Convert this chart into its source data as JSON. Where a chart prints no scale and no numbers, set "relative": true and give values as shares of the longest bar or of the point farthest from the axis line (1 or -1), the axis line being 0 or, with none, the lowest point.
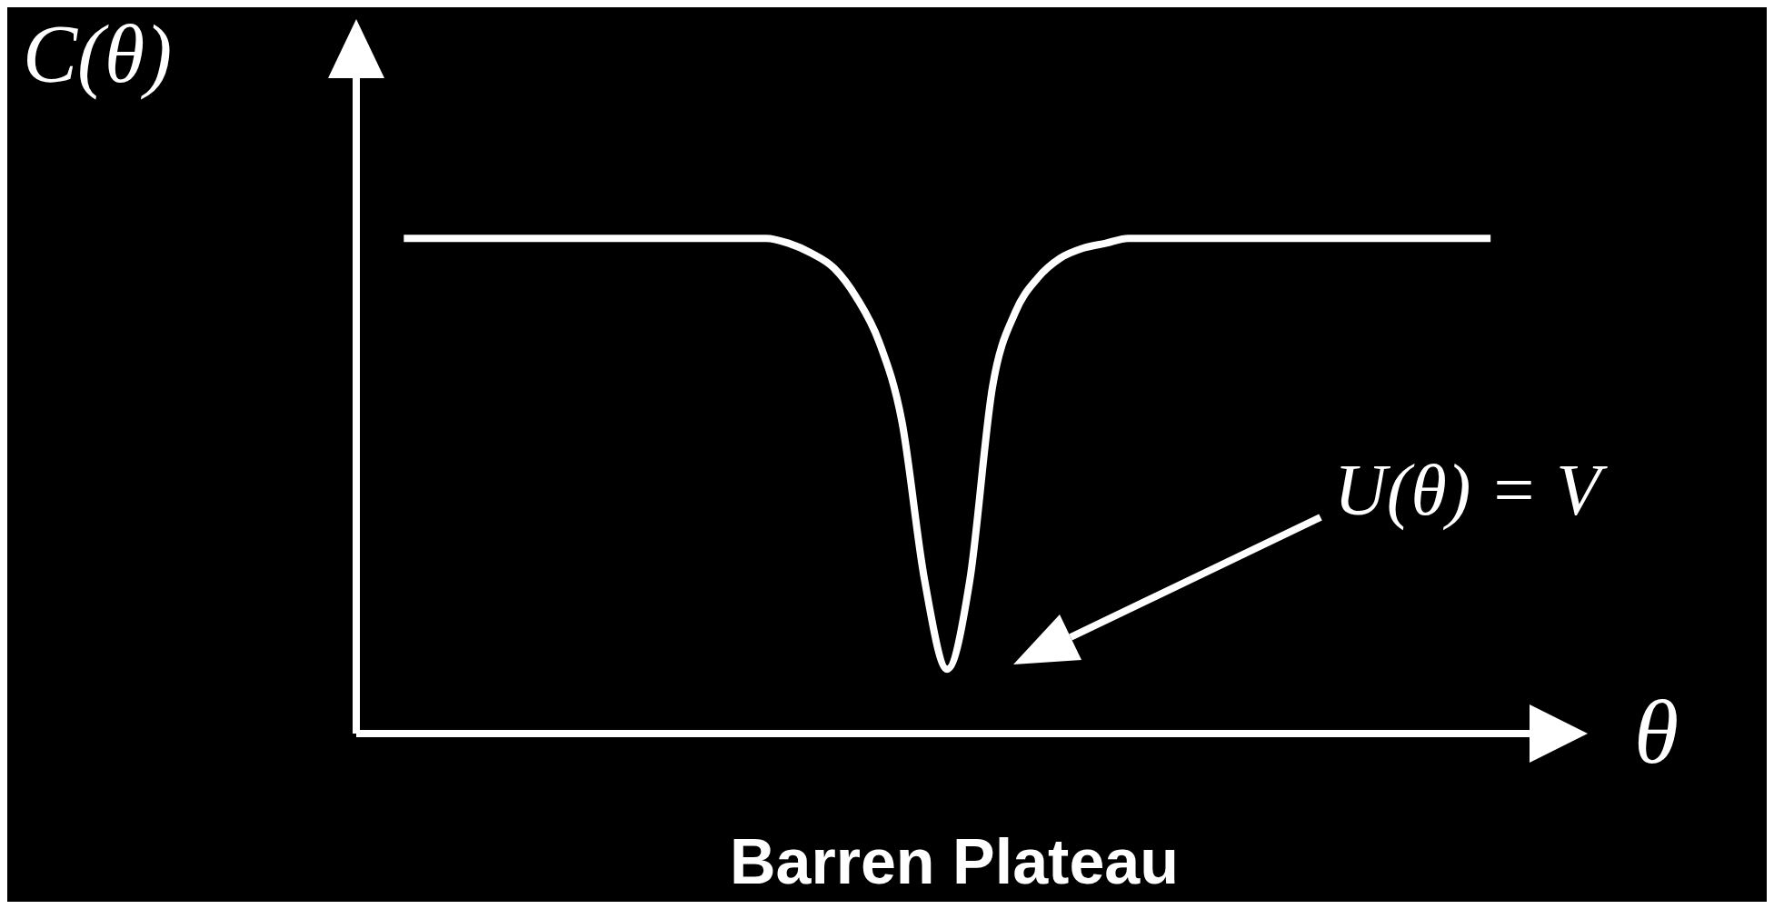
{
  "chart_data": {
    "type": "line",
    "title": "Barren Plateau",
    "xlabel": "θ",
    "ylabel": "C(θ)",
    "annotations": [
      "U(θ) = V"
    ],
    "relative": true,
    "color": "#ffffff",
    "categories": [
      null,
      null,
      null,
      null,
      null,
      null,
      null,
      null,
      null,
      null,
      null,
      null,
      null,
      null,
      null,
      null,
      null,
      null,
      null,
      null,
      null,
      null,
      null,
      null,
      null,
      null,
      null,
      null,
      null,
      null,
      null,
      null,
      null,
      null,
      null,
      null,
      null,
      null,
      null,
      null,
      null,
      null,
      null,
      null,
      null,
      null,
      null,
      null,
      null
    ],
    "values": [
      1,
      1,
      1,
      1,
      1,
      1,
      1,
      1,
      1,
      1,
      1,
      1,
      1,
      1,
      1,
      1,
      1,
      0.99,
      0.97,
      0.94,
      0.88,
      0.79,
      0.63,
      0.31,
      0.13,
      0.31,
      0.7,
      0.85,
      0.92,
      0.96,
      0.98,
      0.99,
      1,
      1,
      1,
      1,
      1,
      1,
      1,
      1,
      1,
      1,
      1,
      1,
      1,
      1,
      1,
      1,
      1
    ]
  }
}
